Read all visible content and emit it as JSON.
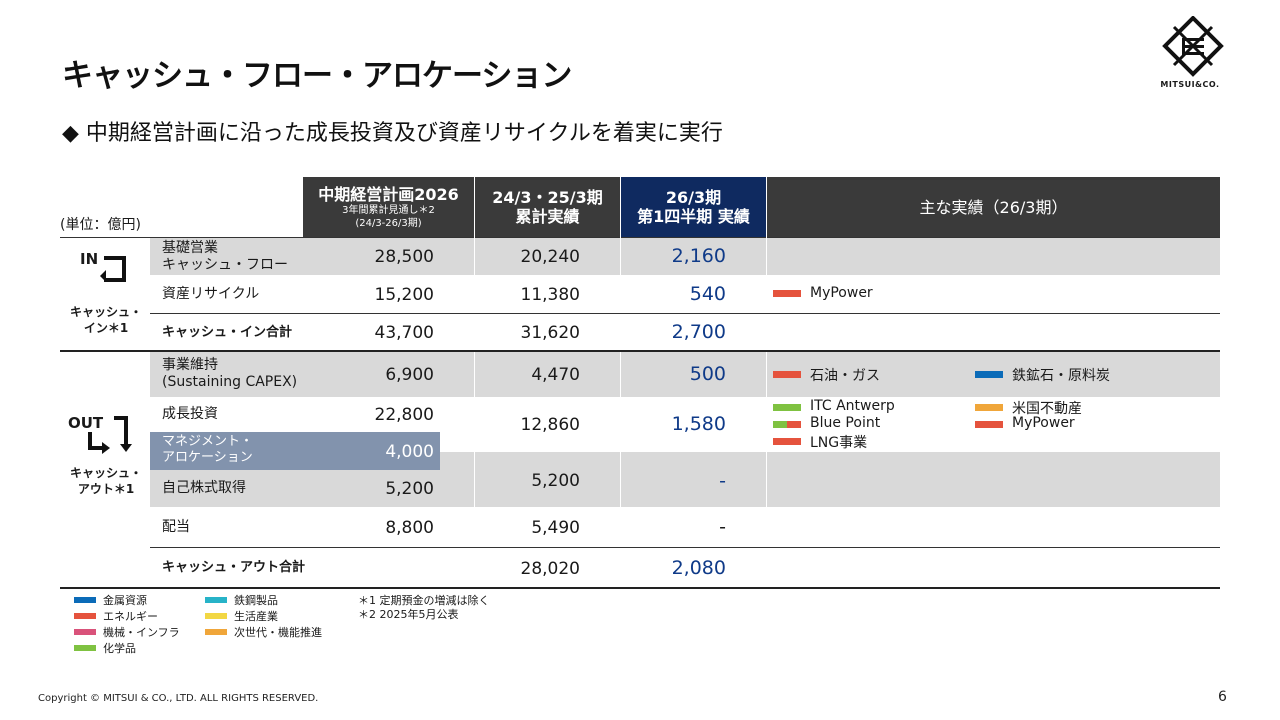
{
  "title": "キャッシュ・フロー・アロケーション",
  "subtitle": "◆ 中期経営計画に沿った成長投資及び資産リサイクルを着実に実行",
  "logo_text": "MITSUI&CO.",
  "unit": "(単位：億円)",
  "headers": {
    "plan_l1": "中期経営計画2026",
    "plan_l2": "3年間累計見通し＊2",
    "plan_l3": "(24/3-26/3期)",
    "cum_l1": "24/3・25/3期",
    "cum_l2": "累計実績",
    "q1_l1": "26/3期",
    "q1_l2": "第1四半期 実績",
    "achievements": "主な実績（26/3期）"
  },
  "side": {
    "in_icon": "IN",
    "in_label_1": "キャッシュ・",
    "in_label_2": "イン＊1",
    "out_icon": "OUT",
    "out_label_1": "キャッシュ・",
    "out_label_2": "アウト＊1"
  },
  "rows": {
    "base_cf": {
      "label_1": "基礎営業",
      "label_2": "キャッシュ・フロー",
      "plan": "28,500",
      "cum": "20,240",
      "q1": "2,160"
    },
    "recycle": {
      "label": "資産リサイクル",
      "plan": "15,200",
      "cum": "11,380",
      "q1": "540"
    },
    "in_total": {
      "label": "キャッシュ・イン合計",
      "plan": "43,700",
      "cum": "31,620",
      "q1": "2,700"
    },
    "sustaining": {
      "label_1": "事業維持",
      "label_2": "(Sustaining CAPEX)",
      "plan": "6,900",
      "cum": "4,470",
      "q1": "500"
    },
    "growth": {
      "label": "成長投資",
      "plan": "22,800",
      "cum": "12,860",
      "q1": "1,580"
    },
    "mgmt": {
      "label_1": "マネジメント・",
      "label_2": "アロケーション",
      "plan": "4,000"
    },
    "buyback": {
      "label": "自己株式取得",
      "plan": "5,200",
      "cum": "5,200",
      "q1": "-"
    },
    "dividend": {
      "label": "配当",
      "plan": "8,800",
      "cum": "5,490",
      "q1": "-"
    },
    "out_total": {
      "label": "キャッシュ・アウト合計",
      "cum": "28,020",
      "q1": "2,080"
    }
  },
  "achievements": {
    "recycle_1": "MyPower",
    "sust_1": "石油・ガス",
    "sust_2": "鉄鉱石・原料炭",
    "growth_1": "ITC Antwerp",
    "growth_2": "Blue Point",
    "growth_3": "LNG事業",
    "growth_4": "米国不動産",
    "growth_5": "MyPower"
  },
  "legend": {
    "metals": "金属資源",
    "energy": "エネルギー",
    "machinery": "機械・インフラ",
    "chemicals": "化学品",
    "iron_steel": "鉄鋼製品",
    "lifestyle": "生活産業",
    "innovation": "次世代・機能推進"
  },
  "notes": {
    "n1": "＊1 定期預金の増減は除く",
    "n2": "＊2 2025年5月公表"
  },
  "colors": {
    "metals": "#0b6bb8",
    "energy": "#e5533d",
    "machinery": "#d9527a",
    "chemicals": "#7fc241",
    "iron_steel": "#27b3c8",
    "lifestyle": "#f2d744",
    "innovation": "#f0a63a",
    "header_dark": "#3a3a3a",
    "header_navy": "#0f2a60",
    "value_blue": "#0f3a88"
  },
  "copyright": "Copyright © MITSUI & CO., LTD. ALL RIGHTS RESERVED.",
  "page_number": "6"
}
